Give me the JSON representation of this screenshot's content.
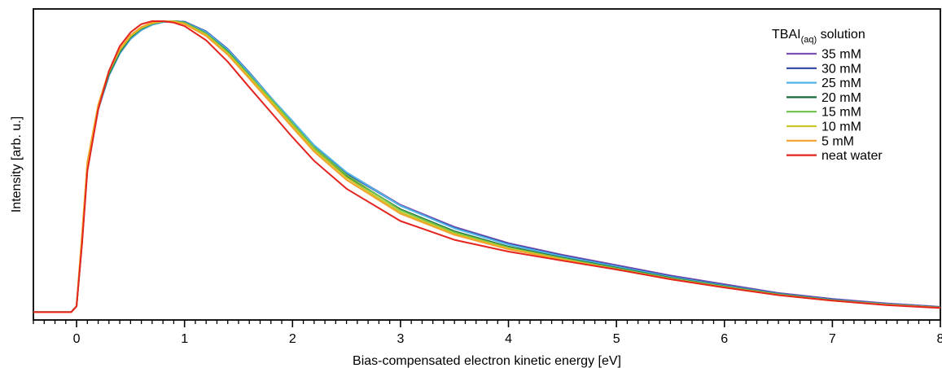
{
  "chart_data": {
    "type": "line",
    "title": "",
    "xlabel": "Bias-compensated electron kinetic energy [eV]",
    "ylabel": "Intensity [arb. u.]",
    "xlim": [
      -0.4,
      8.0
    ],
    "ylim": [
      0,
      1
    ],
    "x_ticks": [
      "0",
      "1",
      "2",
      "3",
      "4",
      "5",
      "6",
      "7",
      "8"
    ],
    "x_tick_values": [
      0,
      1,
      2,
      3,
      4,
      5,
      6,
      7,
      8
    ],
    "y_ticks_shown": false,
    "legend": {
      "title_main": "TBAI",
      "title_sub": "(aq)",
      "title_rest": " solution",
      "placement": "top-right"
    },
    "x": [
      -0.4,
      -0.05,
      0.0,
      0.05,
      0.1,
      0.2,
      0.3,
      0.4,
      0.5,
      0.6,
      0.7,
      0.8,
      0.9,
      1.0,
      1.2,
      1.4,
      1.6,
      1.8,
      2.0,
      2.2,
      2.5,
      3.0,
      3.5,
      4.0,
      4.5,
      5.0,
      5.5,
      6.0,
      6.5,
      7.0,
      7.5,
      8.0
    ],
    "series": [
      {
        "name": "35 mM",
        "color": "#7b4fb4",
        "values": [
          0.01,
          0.01,
          0.03,
          0.25,
          0.5,
          0.7,
          0.815,
          0.89,
          0.94,
          0.97,
          0.988,
          0.997,
          1.0,
          0.998,
          0.965,
          0.905,
          0.825,
          0.74,
          0.655,
          0.575,
          0.485,
          0.375,
          0.3,
          0.245,
          0.205,
          0.17,
          0.135,
          0.105,
          0.075,
          0.055,
          0.04,
          0.028
        ]
      },
      {
        "name": "30 mM",
        "color": "#2d45a4",
        "values": [
          0.01,
          0.01,
          0.03,
          0.25,
          0.5,
          0.7,
          0.815,
          0.89,
          0.94,
          0.97,
          0.988,
          0.997,
          1.0,
          0.998,
          0.965,
          0.905,
          0.825,
          0.74,
          0.652,
          0.572,
          0.482,
          0.372,
          0.297,
          0.242,
          0.202,
          0.167,
          0.132,
          0.102,
          0.073,
          0.053,
          0.038,
          0.027
        ]
      },
      {
        "name": "25 mM",
        "color": "#4fb5e6",
        "values": [
          0.01,
          0.01,
          0.03,
          0.25,
          0.5,
          0.7,
          0.815,
          0.89,
          0.94,
          0.97,
          0.988,
          0.997,
          1.0,
          0.997,
          0.963,
          0.903,
          0.823,
          0.74,
          0.66,
          0.578,
          0.486,
          0.372,
          0.295,
          0.24,
          0.2,
          0.165,
          0.13,
          0.1,
          0.072,
          0.052,
          0.037,
          0.026
        ]
      },
      {
        "name": "20 mM",
        "color": "#1a6a3a",
        "values": [
          0.01,
          0.01,
          0.03,
          0.25,
          0.505,
          0.705,
          0.82,
          0.895,
          0.945,
          0.974,
          0.991,
          0.999,
          1.0,
          0.995,
          0.958,
          0.897,
          0.816,
          0.732,
          0.648,
          0.566,
          0.473,
          0.36,
          0.285,
          0.233,
          0.195,
          0.161,
          0.127,
          0.098,
          0.071,
          0.051,
          0.036,
          0.026
        ]
      },
      {
        "name": "15 mM",
        "color": "#6cc04a",
        "values": [
          0.01,
          0.01,
          0.03,
          0.26,
          0.51,
          0.71,
          0.825,
          0.9,
          0.948,
          0.976,
          0.992,
          0.999,
          1.0,
          0.994,
          0.957,
          0.895,
          0.815,
          0.735,
          0.652,
          0.57,
          0.477,
          0.357,
          0.282,
          0.23,
          0.193,
          0.159,
          0.125,
          0.097,
          0.07,
          0.05,
          0.036,
          0.025
        ]
      },
      {
        "name": "10 mM",
        "color": "#c7c92a",
        "values": [
          0.01,
          0.01,
          0.03,
          0.27,
          0.52,
          0.715,
          0.83,
          0.903,
          0.95,
          0.978,
          0.993,
          1.0,
          0.999,
          0.992,
          0.954,
          0.89,
          0.81,
          0.728,
          0.645,
          0.563,
          0.468,
          0.35,
          0.277,
          0.227,
          0.19,
          0.156,
          0.123,
          0.095,
          0.069,
          0.049,
          0.035,
          0.025
        ]
      },
      {
        "name": "5 mM",
        "color": "#f3a32a",
        "values": [
          0.01,
          0.01,
          0.03,
          0.27,
          0.52,
          0.715,
          0.83,
          0.905,
          0.952,
          0.98,
          0.995,
          1.0,
          0.998,
          0.99,
          0.95,
          0.886,
          0.805,
          0.722,
          0.638,
          0.556,
          0.46,
          0.345,
          0.273,
          0.224,
          0.188,
          0.155,
          0.122,
          0.094,
          0.068,
          0.049,
          0.035,
          0.025
        ]
      },
      {
        "name": "neat water",
        "color": "#e3241f",
        "values": [
          0.01,
          0.01,
          0.03,
          0.24,
          0.49,
          0.7,
          0.83,
          0.915,
          0.962,
          0.99,
          1.0,
          1.0,
          0.995,
          0.983,
          0.935,
          0.862,
          0.775,
          0.69,
          0.605,
          0.525,
          0.43,
          0.32,
          0.256,
          0.216,
          0.185,
          0.155,
          0.122,
          0.094,
          0.068,
          0.049,
          0.034,
          0.024
        ]
      }
    ]
  }
}
